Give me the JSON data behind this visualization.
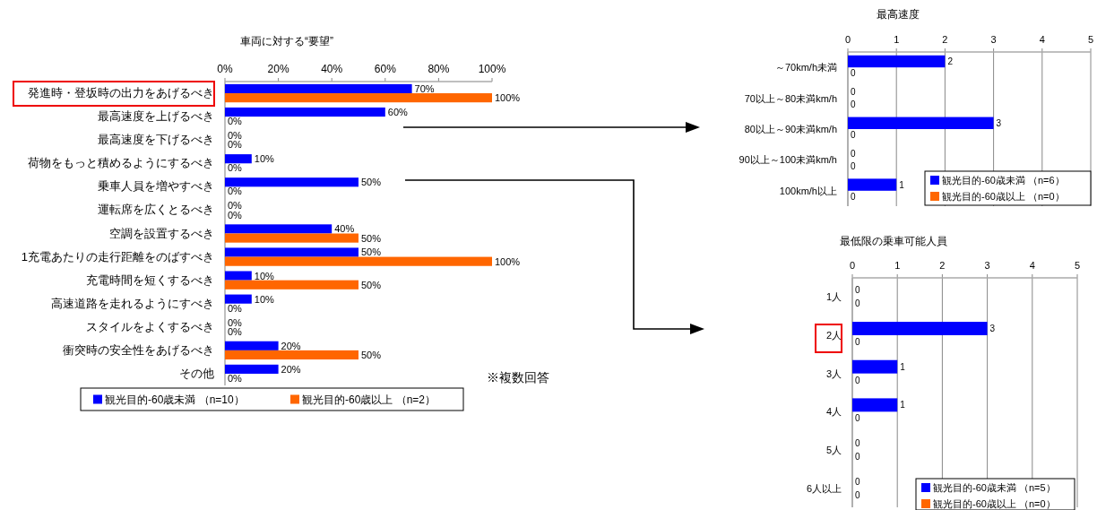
{
  "chart_data": [
    {
      "type": "bar",
      "orientation": "horizontal",
      "title": "車両に対する“要望”",
      "categories": [
        "発進時・登坂時の出力をあげるべき",
        "最高速度を上げるべき",
        "最高速度を下げるべき",
        "荷物をもっと積めるようにするべき",
        "乗車人員を増やすべき",
        "運転席を広くとるべき",
        "空調を設置するべき",
        "1充電あたりの走行距離をのばすべき",
        "充電時間を短くするべき",
        "高速道路を走れるようにすべき",
        "スタイルをよくするべき",
        "衝突時の安全性をあげるべき",
        "その他"
      ],
      "series": [
        {
          "name": "観光目的-60歳未満 （n=10）",
          "color": "#0000ff",
          "values": [
            70,
            60,
            0,
            10,
            50,
            0,
            40,
            50,
            10,
            10,
            0,
            20,
            20
          ],
          "value_labels": [
            "70%",
            "60%",
            "0%",
            "10%",
            "50%",
            "0%",
            "40%",
            "50%",
            "10%",
            "10%",
            "0%",
            "20%",
            "20%"
          ]
        },
        {
          "name": "観光目的-60歳以上 （n=2）",
          "color": "#ff6600",
          "values": [
            100,
            0,
            0,
            0,
            0,
            0,
            50,
            100,
            50,
            0,
            0,
            50,
            0
          ],
          "value_labels": [
            "100%",
            "0%",
            "0%",
            "0%",
            "0%",
            "0%",
            "50%",
            "100%",
            "50%",
            "0%",
            "0%",
            "50%",
            "0%"
          ]
        }
      ],
      "xlim": [
        0,
        100
      ],
      "xticks": [
        {
          "value": 0,
          "label": "0%"
        },
        {
          "value": 20,
          "label": "20%"
        },
        {
          "value": 40,
          "label": "40%"
        },
        {
          "value": 60,
          "label": "60%"
        },
        {
          "value": 80,
          "label": "80%"
        },
        {
          "value": 100,
          "label": "100%"
        }
      ],
      "legend": "bottom",
      "annotations": [
        "※複数回答"
      ]
    },
    {
      "type": "bar",
      "orientation": "horizontal",
      "title": "最高速度",
      "categories": [
        "～70km/h未満",
        "70以上～80未満km/h",
        "80以上～90未満km/h",
        "90以上～100未満km/h",
        "100km/h以上"
      ],
      "series": [
        {
          "name": "観光目的-60歳未満 （n=6）",
          "color": "#0000ff",
          "values": [
            2,
            0,
            3,
            0,
            1
          ]
        },
        {
          "name": "観光目的-60歳以上 （n=0）",
          "color": "#ff6600",
          "values": [
            0,
            0,
            0,
            0,
            0
          ]
        }
      ],
      "xlim": [
        0,
        5
      ],
      "xticks": [
        0,
        1,
        2,
        3,
        4,
        5
      ],
      "grid": "x",
      "data_labels": true,
      "legend": "bottom right"
    },
    {
      "type": "bar",
      "orientation": "horizontal",
      "title": "最低限の乗車可能人員",
      "categories": [
        "1人",
        "2人",
        "3人",
        "4人",
        "5人",
        "6人以上"
      ],
      "series": [
        {
          "name": "観光目的-60歳未満 （n=5）",
          "color": "#0000ff",
          "values": [
            0,
            3,
            1,
            1,
            0,
            0
          ]
        },
        {
          "name": "観光目的-60歳以上 （n=0）",
          "color": "#ff6600",
          "values": [
            0,
            0,
            0,
            0,
            0,
            0
          ]
        }
      ],
      "xlim": [
        0,
        5
      ],
      "xticks": [
        0,
        1,
        2,
        3,
        4,
        5
      ],
      "grid": "x",
      "data_labels": true,
      "legend": "bottom right"
    }
  ]
}
